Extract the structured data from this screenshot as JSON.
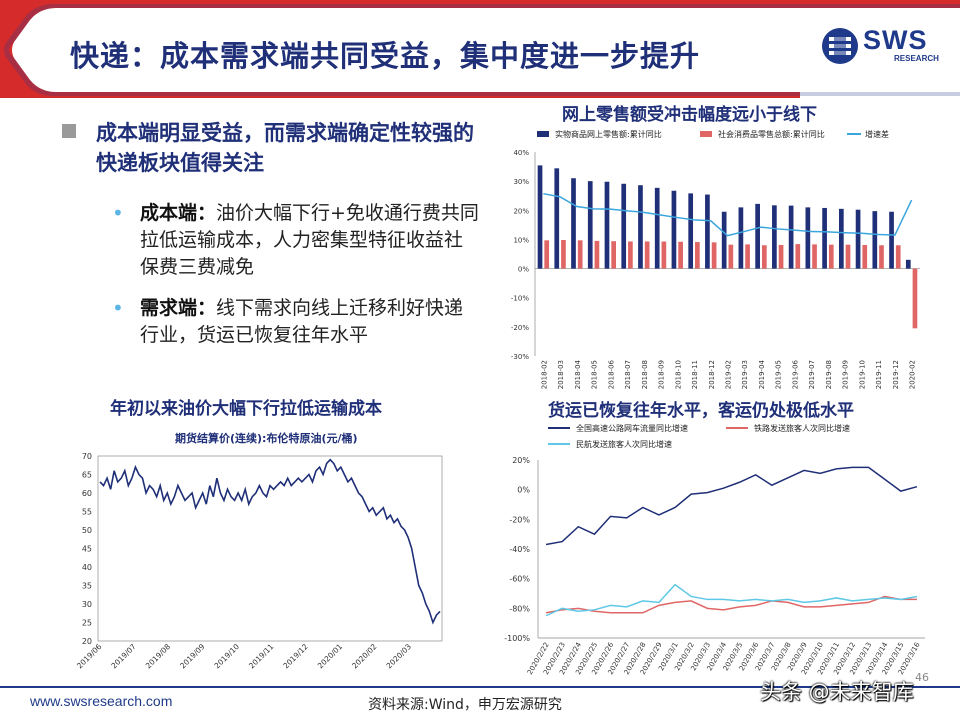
{
  "header": {
    "title": "快递：成本需求端共同受益，集中度进一步提升",
    "logo_text": "SWS",
    "logo_sub": "RESEARCH",
    "accent": "#1f2f78",
    "banner": "#d62b2b"
  },
  "bullets": {
    "main": "成本端明显受益，而需求端确定性较强的快递板块值得关注",
    "sub": [
      {
        "label": "成本端：",
        "text": "油价大幅下行+免收通行费共同拉低运输成本，人力密集型特征收益社保费三费减免"
      },
      {
        "label": "需求端：",
        "text": "线下需求向线上迁移利好快递行业，货运已恢复往年水平"
      }
    ]
  },
  "footer": {
    "website": "www.swsresearch.com",
    "source": "资料来源:Wind，申万宏源研究",
    "page": "46",
    "watermark": "头条 @未来智库"
  },
  "chart_data": [
    {
      "id": "retail",
      "type": "bar",
      "title": "网上零售额受冲击幅度远小于线下",
      "categories": [
        "2018-02",
        "2018-03",
        "2018-04",
        "2018-05",
        "2018-06",
        "2018-07",
        "2018-08",
        "2018-09",
        "2018-10",
        "2018-11",
        "2018-12",
        "2019-02",
        "2019-03",
        "2019-04",
        "2019-05",
        "2019-06",
        "2019-07",
        "2019-08",
        "2019-09",
        "2019-10",
        "2019-11",
        "2019-12",
        "2020-02"
      ],
      "ylim": [
        -30,
        40
      ],
      "yticks": [
        "40%",
        "30%",
        "20%",
        "10%",
        "0%",
        "-10%",
        "-20%",
        "-30%"
      ],
      "ytick_values": [
        40,
        30,
        20,
        10,
        0,
        -10,
        -20,
        -30
      ],
      "series": [
        {
          "name": "实物商品网上零售额:累计同比",
          "type": "bar",
          "color": "#1f2f78",
          "values": [
            35.4,
            34.4,
            31.0,
            30.0,
            29.8,
            29.1,
            28.6,
            27.7,
            26.7,
            25.8,
            25.4,
            19.5,
            21.0,
            22.2,
            21.7,
            21.6,
            21.0,
            20.8,
            20.5,
            20.2,
            19.7,
            19.5,
            3.0
          ]
        },
        {
          "name": "社会消费品零售总额:累计同比",
          "type": "bar",
          "color": "#e06666",
          "values": [
            9.7,
            9.8,
            9.7,
            9.5,
            9.4,
            9.3,
            9.3,
            9.3,
            9.2,
            9.1,
            9.0,
            8.2,
            8.3,
            8.0,
            8.1,
            8.4,
            8.3,
            8.2,
            8.2,
            8.1,
            8.0,
            8.0,
            -20.5
          ]
        },
        {
          "name": "增速差",
          "type": "line",
          "color": "#3aa6dd",
          "values": [
            25.7,
            24.6,
            21.3,
            20.5,
            20.4,
            19.8,
            19.3,
            18.4,
            17.5,
            16.7,
            16.4,
            11.3,
            12.7,
            14.2,
            13.6,
            13.2,
            12.7,
            12.6,
            12.3,
            12.1,
            11.7,
            11.5,
            23.5
          ]
        }
      ]
    },
    {
      "id": "oil",
      "type": "line",
      "title": "年初以来油价大幅下行拉低运输成本",
      "subtitle": "期货结算价(连续):布伦特原油(元/桶)",
      "ylim": [
        20,
        70
      ],
      "yticks": [
        "70",
        "65",
        "60",
        "55",
        "50",
        "45",
        "40",
        "35",
        "30",
        "25",
        "20"
      ],
      "ytick_values": [
        70,
        65,
        60,
        55,
        50,
        45,
        40,
        35,
        30,
        25,
        20
      ],
      "xticks": [
        "2019/06",
        "2019/07",
        "2019/08",
        "2019/09",
        "2019/10",
        "2019/11",
        "2019/12",
        "2020/01",
        "2020/02",
        "2020/03"
      ],
      "color": "#1f2f78",
      "values": [
        63,
        62,
        64,
        61,
        66,
        63,
        64,
        66,
        62,
        64,
        67,
        65,
        64,
        60,
        62,
        61,
        59,
        62,
        58,
        60,
        57,
        59,
        62,
        60,
        58,
        59,
        60,
        56,
        58,
        60,
        57,
        62,
        59,
        64,
        60,
        58,
        61,
        59,
        58,
        60,
        58,
        61,
        57,
        59,
        60,
        62,
        60,
        59,
        62,
        61,
        62,
        63,
        62,
        64,
        62,
        63,
        64,
        63,
        64,
        65,
        63,
        66,
        67,
        65,
        68,
        69,
        68,
        66,
        67,
        65,
        63,
        64,
        62,
        60,
        59,
        57,
        55,
        56,
        54,
        55,
        56,
        53,
        54,
        52,
        53,
        51,
        50,
        48,
        45,
        40,
        35,
        33,
        30,
        28,
        25,
        27,
        28
      ]
    },
    {
      "id": "freight",
      "type": "line",
      "title": "货运已恢复往年水平，客运仍处极低水平",
      "categories": [
        "2020/2/22",
        "2020/2/23",
        "2020/2/24",
        "2020/2/25",
        "2020/2/26",
        "2020/2/27",
        "2020/2/28",
        "2020/2/29",
        "2020/3/1",
        "2020/3/2",
        "2020/3/3",
        "2020/3/4",
        "2020/3/5",
        "2020/3/6",
        "2020/3/7",
        "2020/3/8",
        "2020/3/9",
        "2020/3/10",
        "2020/3/11",
        "2020/3/12",
        "2020/3/13",
        "2020/3/14",
        "2020/3/15",
        "2020/3/16"
      ],
      "ylim": [
        -100,
        20
      ],
      "yticks": [
        "20%",
        "0%",
        "-20%",
        "-40%",
        "-60%",
        "-80%",
        "-100%"
      ],
      "ytick_values": [
        20,
        0,
        -20,
        -40,
        -60,
        -80,
        -100
      ],
      "series": [
        {
          "name": "全国高速公路网车流量同比增速",
          "color": "#1f2f78",
          "values": [
            -37,
            -35,
            -25,
            -30,
            -18,
            -19,
            -12,
            -17,
            -12,
            -3,
            -2,
            1,
            5,
            10,
            3,
            8,
            13,
            11,
            14,
            15,
            15,
            7,
            -1,
            2
          ]
        },
        {
          "name": "铁路发送旅客人次同比增速",
          "color": "#e06666",
          "values": [
            -83,
            -81,
            -80,
            -82,
            -83,
            -83,
            -83,
            -78,
            -76,
            -75,
            -80,
            -81,
            -79,
            -78,
            -75,
            -76,
            -79,
            -79,
            -78,
            -77,
            -76,
            -72,
            -74,
            -74
          ]
        },
        {
          "name": "民航发送旅客人次同比增速",
          "color": "#5ec8e6",
          "values": [
            -85,
            -80,
            -82,
            -81,
            -78,
            -79,
            -75,
            -76,
            -64,
            -72,
            -74,
            -74,
            -75,
            -74,
            -75,
            -74,
            -76,
            -75,
            -73,
            -75,
            -74,
            -73,
            -74,
            -72
          ]
        }
      ]
    }
  ]
}
